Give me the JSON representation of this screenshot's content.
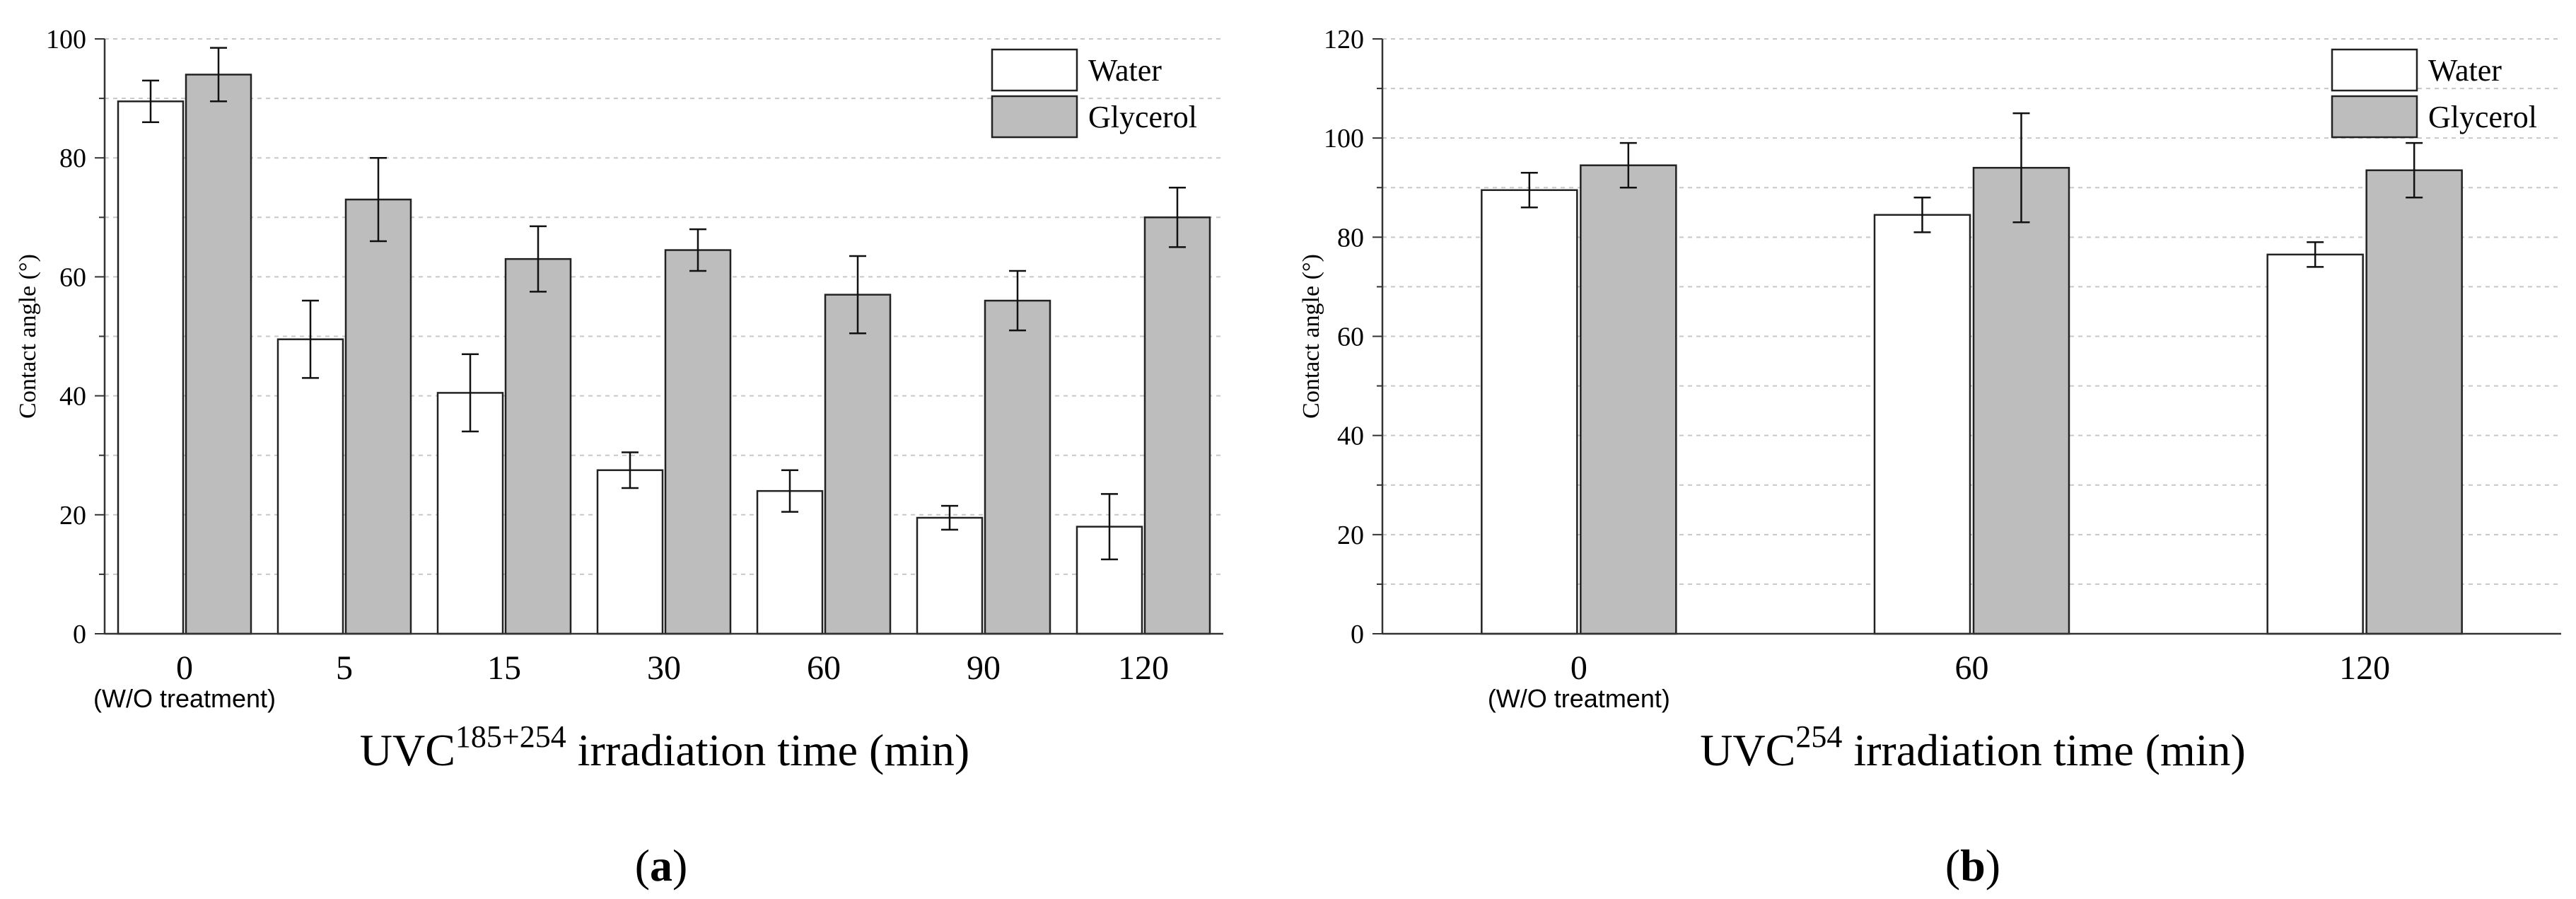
{
  "colors": {
    "water": "#ffffff",
    "glycerol": "#bdbdbd",
    "edge": "#222222",
    "grid": "#c8c8c8"
  },
  "chart_data": [
    {
      "type": "bar",
      "panel_label": "(a)",
      "panel_letter": "a",
      "categories": [
        "0",
        "5",
        "15",
        "30",
        "60",
        "90",
        "120"
      ],
      "first_category_note": "(W/O treatment)",
      "xlabel_prefix": "UVC",
      "xlabel_sup": "185+254",
      "xlabel_suffix": " irradiation time (min)",
      "ylabel": "Contact angle (°)",
      "ylim": [
        0,
        100
      ],
      "yticks": [
        "0",
        "20",
        "40",
        "60",
        "80",
        "100"
      ],
      "grid": true,
      "legend": "top-right",
      "series": [
        {
          "name": "Water",
          "values": [
            89.5,
            49.5,
            40.5,
            27.5,
            24,
            19.5,
            18
          ],
          "errors": [
            3.5,
            6.5,
            6.5,
            3,
            3.5,
            2,
            5.5
          ]
        },
        {
          "name": "Glycerol",
          "values": [
            94,
            73,
            63,
            64.5,
            57,
            56,
            70
          ],
          "errors": [
            4.5,
            7,
            5.5,
            3.5,
            6.5,
            5,
            5
          ]
        }
      ]
    },
    {
      "type": "bar",
      "panel_label": "(b)",
      "panel_letter": "b",
      "categories": [
        "0",
        "60",
        "120"
      ],
      "first_category_note": "(W/O treatment)",
      "xlabel_prefix": "UVC",
      "xlabel_sup": "254",
      "xlabel_suffix": " irradiation time (min)",
      "ylabel": "Contact angle (°)",
      "ylim": [
        0,
        120
      ],
      "yticks": [
        "0",
        "20",
        "40",
        "60",
        "80",
        "100",
        "120"
      ],
      "grid": true,
      "legend": "top-right",
      "series": [
        {
          "name": "Water",
          "values": [
            89.5,
            84.5,
            76.5
          ],
          "errors": [
            3.5,
            3.5,
            2.5
          ]
        },
        {
          "name": "Glycerol",
          "values": [
            94.5,
            94,
            93.5
          ],
          "errors": [
            4.5,
            11,
            5.5
          ]
        }
      ]
    }
  ]
}
